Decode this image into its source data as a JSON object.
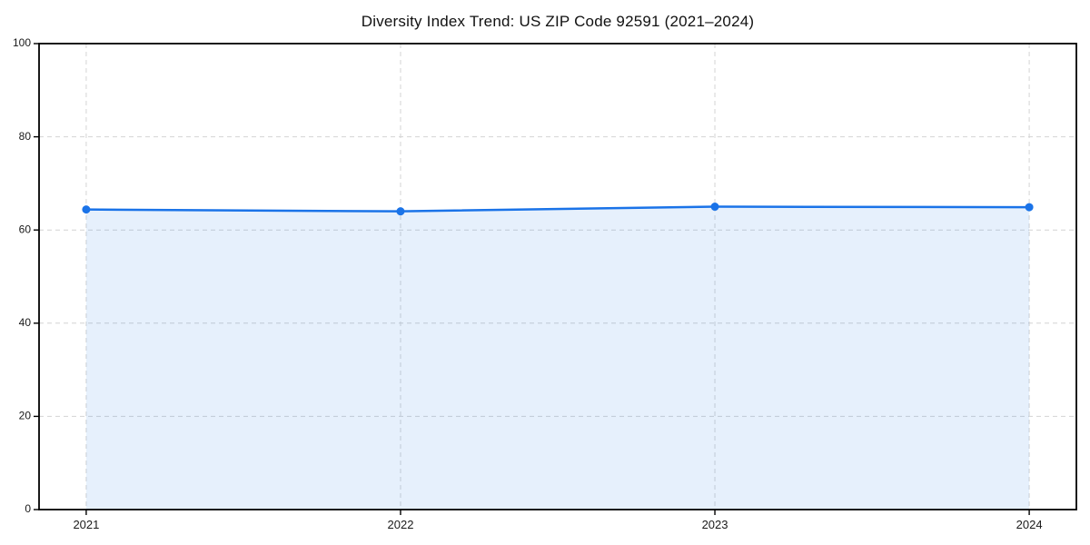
{
  "chart_data": {
    "type": "area",
    "title": "Diversity Index Trend: US ZIP Code 92591 (2021–2024)",
    "xlabel": "",
    "ylabel": "",
    "x": [
      2021,
      2022,
      2023,
      2024
    ],
    "xticks": [
      2021,
      2022,
      2023,
      2024
    ],
    "yticks": [
      0,
      20,
      40,
      60,
      80,
      100
    ],
    "ylim": [
      0,
      100
    ],
    "x_margin_frac": 0.05,
    "grid": true,
    "grid_style": "dashed",
    "legend": "none",
    "series": [
      {
        "name": "Diversity Index",
        "values": [
          64.4,
          64.0,
          65.0,
          64.9
        ]
      }
    ],
    "colors": {
      "line": "#1a73e8",
      "marker": "#1a73e8",
      "fill": "rgba(26,115,232,0.11)",
      "grid": "#d4d4d4",
      "spine": "#000000",
      "tick_label": "#1a1a1a",
      "title": "#111111",
      "background": "#ffffff"
    }
  }
}
